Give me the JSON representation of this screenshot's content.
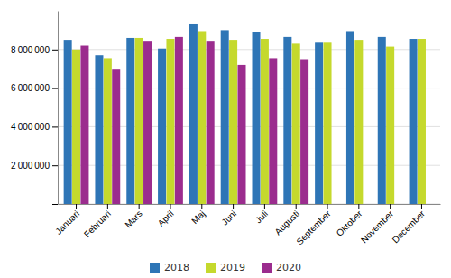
{
  "chart_data": {
    "type": "bar",
    "categories": [
      "Januari",
      "Februari",
      "Mars",
      "April",
      "Maj",
      "Juni",
      "Juli",
      "Augusti",
      "September",
      "Oktober",
      "November",
      "December"
    ],
    "series": [
      {
        "name": "2018",
        "color": "#2E75B6",
        "values": [
          8500000,
          7700000,
          8600000,
          8050000,
          9300000,
          9000000,
          8900000,
          8650000,
          8350000,
          8950000,
          8650000,
          8550000
        ]
      },
      {
        "name": "2019",
        "color": "#C5D92D",
        "values": [
          8000000,
          7550000,
          8600000,
          8550000,
          8950000,
          8500000,
          8550000,
          8300000,
          8350000,
          8500000,
          8150000,
          8550000
        ]
      },
      {
        "name": "2020",
        "color": "#9B2C8E",
        "values": [
          8200000,
          7000000,
          8450000,
          8650000,
          8450000,
          7200000,
          7550000,
          7500000,
          null,
          null,
          null,
          null
        ]
      }
    ],
    "ylim": [
      0,
      10000000
    ],
    "yticks": [
      {
        "value": 0,
        "label": null
      },
      {
        "value": 2000000,
        "label": "2 000 000"
      },
      {
        "value": 4000000,
        "label": "4 000 000"
      },
      {
        "value": 6000000,
        "label": "6 000 000"
      },
      {
        "value": 8000000,
        "label": "8 000 000"
      }
    ],
    "grid": true
  }
}
